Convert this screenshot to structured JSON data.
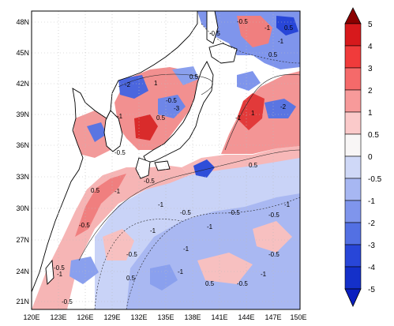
{
  "map": {
    "axis": {
      "lat_labels": [
        "48N",
        "45N",
        "42N",
        "39N",
        "36N",
        "33N",
        "30N",
        "27N",
        "24N",
        "21N"
      ],
      "lon_labels": [
        "120E",
        "123E",
        "126E",
        "129E",
        "132E",
        "135E",
        "138E",
        "141E",
        "144E",
        "147E",
        "150E"
      ]
    },
    "colorbar": {
      "levels": [
        "5",
        "4",
        "3",
        "2",
        "1",
        "0.5",
        "0",
        "-0.5",
        "-1",
        "-2",
        "-3",
        "-4",
        "-5"
      ],
      "colors": [
        "#8b0000",
        "#d7191c",
        "#f03b3b",
        "#f56a6a",
        "#f79a9a",
        "#fbcaca",
        "#f8f6f6",
        "#cfd8f7",
        "#a7b7f2",
        "#7f95ec",
        "#5370e3",
        "#2846d8",
        "#0a1fbf"
      ]
    },
    "contour_labels": [
      {
        "text": "-0.5"
      },
      {
        "text": "-1"
      },
      {
        "text": "0.5"
      },
      {
        "text": "-1"
      },
      {
        "text": "-0.5"
      },
      {
        "text": "0.5"
      },
      {
        "text": "-2"
      },
      {
        "text": "1"
      },
      {
        "text": "0.5"
      },
      {
        "text": "-0.5"
      },
      {
        "text": "-3"
      },
      {
        "text": "-1"
      },
      {
        "text": "0.5"
      },
      {
        "text": "-1"
      },
      {
        "text": "-2"
      },
      {
        "text": "1"
      },
      {
        "text": "-0.5"
      },
      {
        "text": "0.5"
      },
      {
        "text": "-1"
      },
      {
        "text": "-0.5"
      },
      {
        "text": "-1"
      },
      {
        "text": "-0.5"
      },
      {
        "text": "0.5"
      },
      {
        "text": "-1"
      },
      {
        "text": "-0.5"
      },
      {
        "text": "-0.5"
      },
      {
        "text": "-1"
      },
      {
        "text": "-0.5"
      },
      {
        "text": "-1"
      },
      {
        "text": "-0.5"
      },
      {
        "text": "-1"
      },
      {
        "text": "-0.5"
      },
      {
        "text": "-1"
      },
      {
        "text": "-0.5"
      },
      {
        "text": "0.5"
      },
      {
        "text": "-1"
      },
      {
        "text": "0.5"
      },
      {
        "text": "-0.5"
      },
      {
        "text": "-1"
      },
      {
        "text": "-0.5"
      }
    ]
  }
}
